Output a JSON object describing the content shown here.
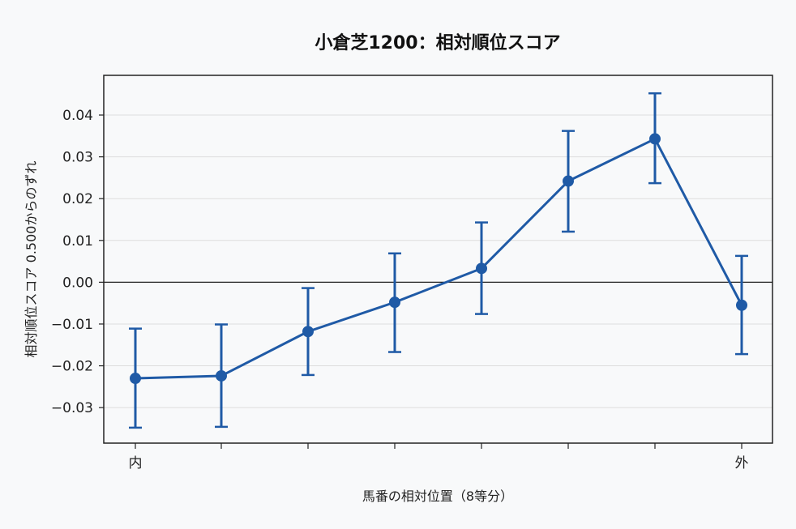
{
  "chart_data": {
    "type": "line",
    "title": "小倉芝1200：相対順位スコア",
    "xlabel": "馬番の相対位置（8等分）",
    "ylabel": "相対順位スコア 0.500からのずれ",
    "categories": [
      "内",
      "",
      "",
      "",
      "",
      "",
      "",
      "外"
    ],
    "values": [
      -0.023,
      -0.0224,
      -0.0118,
      -0.0048,
      0.0033,
      0.0242,
      0.0343,
      -0.0055
    ],
    "error_low": [
      -0.0348,
      -0.0346,
      -0.0222,
      -0.0167,
      -0.0076,
      0.0121,
      0.0237,
      -0.0172
    ],
    "error_high": [
      -0.0111,
      -0.0101,
      -0.0014,
      0.0069,
      0.0143,
      0.0362,
      0.0452,
      0.0063
    ],
    "ylim": [
      -0.0385,
      0.0495
    ],
    "yticks": [
      -0.03,
      -0.02,
      -0.01,
      0.0,
      0.01,
      0.02,
      0.03,
      0.04
    ],
    "ytick_labels": [
      "−0.03",
      "−0.02",
      "−0.01",
      "0.00",
      "0.01",
      "0.02",
      "0.03",
      "0.04"
    ],
    "reference_line": 0,
    "grid": true,
    "colors": {
      "line": "#1f5aa6",
      "plot_bg": "#f8f9fa",
      "grid": "#dddddd",
      "axis": "#222222"
    }
  }
}
